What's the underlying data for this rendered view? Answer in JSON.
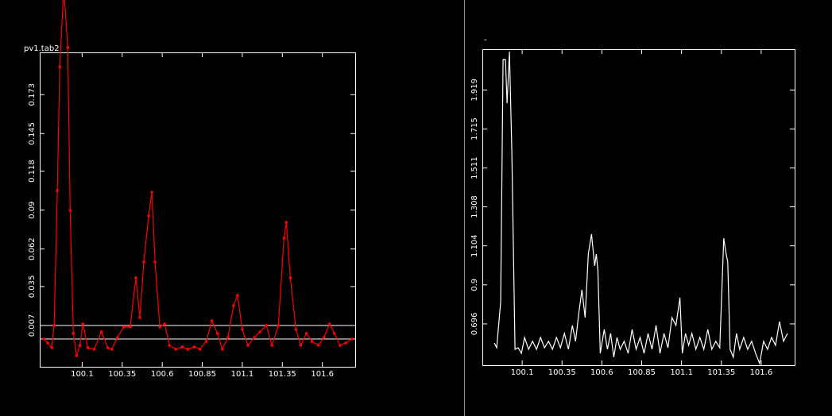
{
  "chart_data": [
    {
      "type": "line",
      "label": "pv1.tab2",
      "color": "#ff0000",
      "markers": true,
      "xlim": [
        99.835,
        101.805
      ],
      "ylim": [
        -0.0227,
        0.2034
      ],
      "xticks": [
        100.1,
        100.35,
        100.6,
        100.85,
        101.1,
        101.35,
        101.6
      ],
      "yticks": [
        0.007,
        0.035,
        0.062,
        0.09,
        0.118,
        0.145,
        0.173
      ],
      "hlines": [
        0.007,
        -0.0027
      ],
      "hline_color": "#ffffff",
      "x": [
        99.86,
        99.885,
        99.91,
        99.925,
        99.945,
        99.96,
        99.985,
        100.01,
        100.025,
        100.045,
        100.065,
        100.085,
        100.105,
        100.135,
        100.175,
        100.22,
        100.26,
        100.285,
        100.32,
        100.36,
        100.4,
        100.435,
        100.46,
        100.485,
        100.515,
        100.535,
        100.555,
        100.585,
        100.615,
        100.645,
        100.685,
        100.725,
        100.76,
        100.8,
        100.835,
        100.875,
        100.91,
        100.945,
        100.975,
        101.01,
        101.045,
        101.07,
        101.1,
        101.135,
        101.175,
        101.21,
        101.25,
        101.285,
        101.325,
        101.36,
        101.375,
        101.4,
        101.435,
        101.465,
        101.5,
        101.535,
        101.575,
        101.61,
        101.645,
        101.675,
        101.71,
        101.745,
        101.785
      ],
      "values": [
        -0.0027,
        -0.0056,
        -0.009,
        0.007,
        0.104,
        0.193,
        0.25,
        0.207,
        0.0898,
        0.0013,
        -0.0147,
        -0.0073,
        0.0081,
        -0.009,
        -0.0101,
        0.0024,
        -0.009,
        -0.0101,
        -0.0016,
        0.0059,
        0.0059,
        0.0413,
        0.0127,
        0.0527,
        0.0858,
        0.1029,
        0.0527,
        0.0059,
        0.0081,
        -0.0073,
        -0.0101,
        -0.0084,
        -0.0101,
        -0.0084,
        -0.0101,
        -0.0044,
        0.0104,
        0.0013,
        -0.0101,
        -0.0016,
        0.0213,
        0.0287,
        0.0041,
        -0.0073,
        -0.0016,
        0.0024,
        0.007,
        -0.0073,
        0.007,
        0.0698,
        0.0812,
        0.0413,
        0.0041,
        -0.0073,
        0.0013,
        -0.0044,
        -0.0073,
        -0.0016,
        0.0081,
        0.0013,
        -0.0073,
        -0.0056,
        -0.0027
      ]
    },
    {
      "type": "line",
      "title": "-",
      "color": "#ffffff",
      "markers": false,
      "xlim": [
        99.85,
        101.81
      ],
      "ylim": [
        0.48,
        2.132
      ],
      "xticks": [
        100.1,
        100.35,
        100.6,
        100.85,
        101.1,
        101.35,
        101.6
      ],
      "yticks": [
        0.696,
        0.9,
        1.104,
        1.308,
        1.511,
        1.715,
        1.919
      ],
      "x": [
        99.925,
        99.94,
        99.965,
        99.98,
        99.995,
        100.005,
        100.02,
        100.035,
        100.055,
        100.075,
        100.095,
        100.115,
        100.14,
        100.165,
        100.19,
        100.215,
        100.24,
        100.265,
        100.29,
        100.315,
        100.34,
        100.365,
        100.39,
        100.415,
        100.435,
        100.455,
        100.475,
        100.495,
        100.515,
        100.535,
        100.555,
        100.565,
        100.575,
        100.59,
        100.615,
        100.635,
        100.655,
        100.675,
        100.695,
        100.715,
        100.74,
        100.765,
        100.79,
        100.815,
        100.84,
        100.865,
        100.89,
        100.915,
        100.94,
        100.965,
        100.99,
        101.015,
        101.04,
        101.065,
        101.09,
        101.105,
        101.125,
        101.145,
        101.165,
        101.19,
        101.215,
        101.24,
        101.265,
        101.29,
        101.315,
        101.34,
        101.365,
        101.38,
        101.39,
        101.405,
        101.425,
        101.445,
        101.465,
        101.49,
        101.515,
        101.54,
        101.565,
        101.59,
        101.615,
        101.64,
        101.665,
        101.69,
        101.715,
        101.74,
        101.765
      ],
      "values": [
        0.596,
        0.571,
        0.812,
        2.078,
        2.078,
        1.85,
        2.119,
        1.601,
        0.563,
        0.571,
        0.542,
        0.625,
        0.563,
        0.605,
        0.563,
        0.625,
        0.571,
        0.605,
        0.563,
        0.625,
        0.571,
        0.646,
        0.563,
        0.688,
        0.605,
        0.75,
        0.874,
        0.729,
        1.061,
        1.165,
        0.999,
        1.061,
        0.978,
        0.542,
        0.667,
        0.563,
        0.646,
        0.522,
        0.625,
        0.563,
        0.605,
        0.542,
        0.667,
        0.563,
        0.625,
        0.542,
        0.646,
        0.563,
        0.688,
        0.542,
        0.646,
        0.571,
        0.729,
        0.688,
        0.833,
        0.542,
        0.646,
        0.584,
        0.646,
        0.563,
        0.625,
        0.563,
        0.667,
        0.563,
        0.605,
        0.571,
        1.144,
        1.061,
        1.02,
        0.563,
        0.522,
        0.646,
        0.563,
        0.625,
        0.563,
        0.605,
        0.542,
        0.489,
        0.605,
        0.563,
        0.625,
        0.584,
        0.708,
        0.605,
        0.646
      ]
    }
  ]
}
